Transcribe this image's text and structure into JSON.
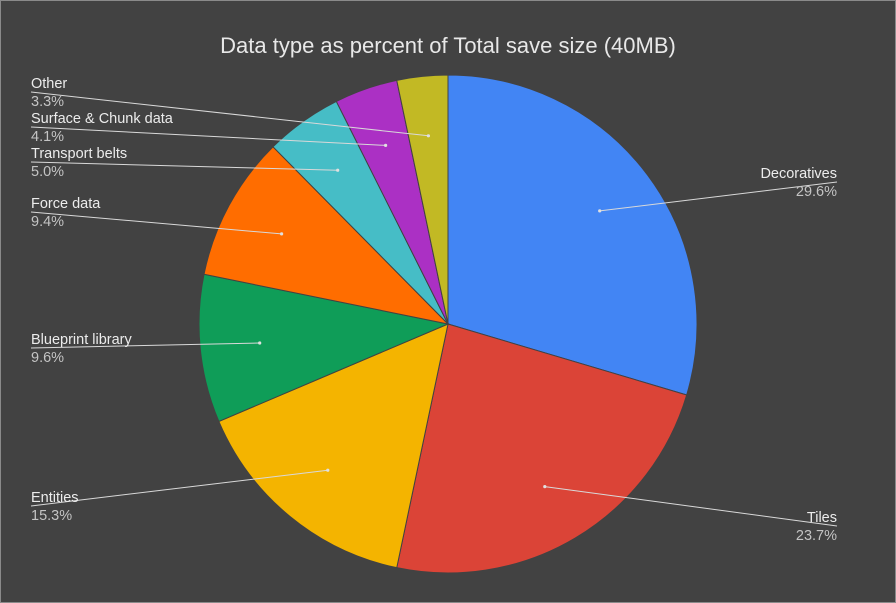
{
  "chart_data": {
    "type": "pie",
    "title": "Data type as percent of Total save size (40MB)",
    "slices": [
      {
        "name": "Decoratives",
        "value": 29.6,
        "label": "29.6%",
        "color": "#4285f4"
      },
      {
        "name": "Tiles",
        "value": 23.7,
        "label": "23.7%",
        "color": "#db4437"
      },
      {
        "name": "Entities",
        "value": 15.3,
        "label": "15.3%",
        "color": "#f4b400"
      },
      {
        "name": "Blueprint library",
        "value": 9.6,
        "label": "9.6%",
        "color": "#0f9d58"
      },
      {
        "name": "Force data",
        "value": 9.4,
        "label": "9.4%",
        "color": "#ff6d00"
      },
      {
        "name": "Transport belts",
        "value": 5.0,
        "label": "5.0%",
        "color": "#46bdc6"
      },
      {
        "name": "Surface & Chunk data",
        "value": 4.1,
        "label": "4.1%",
        "color": "#ab30c4"
      },
      {
        "name": "Other",
        "value": 3.3,
        "label": "3.3%",
        "color": "#c2b924"
      }
    ],
    "background": "#424242",
    "legend": "none"
  }
}
